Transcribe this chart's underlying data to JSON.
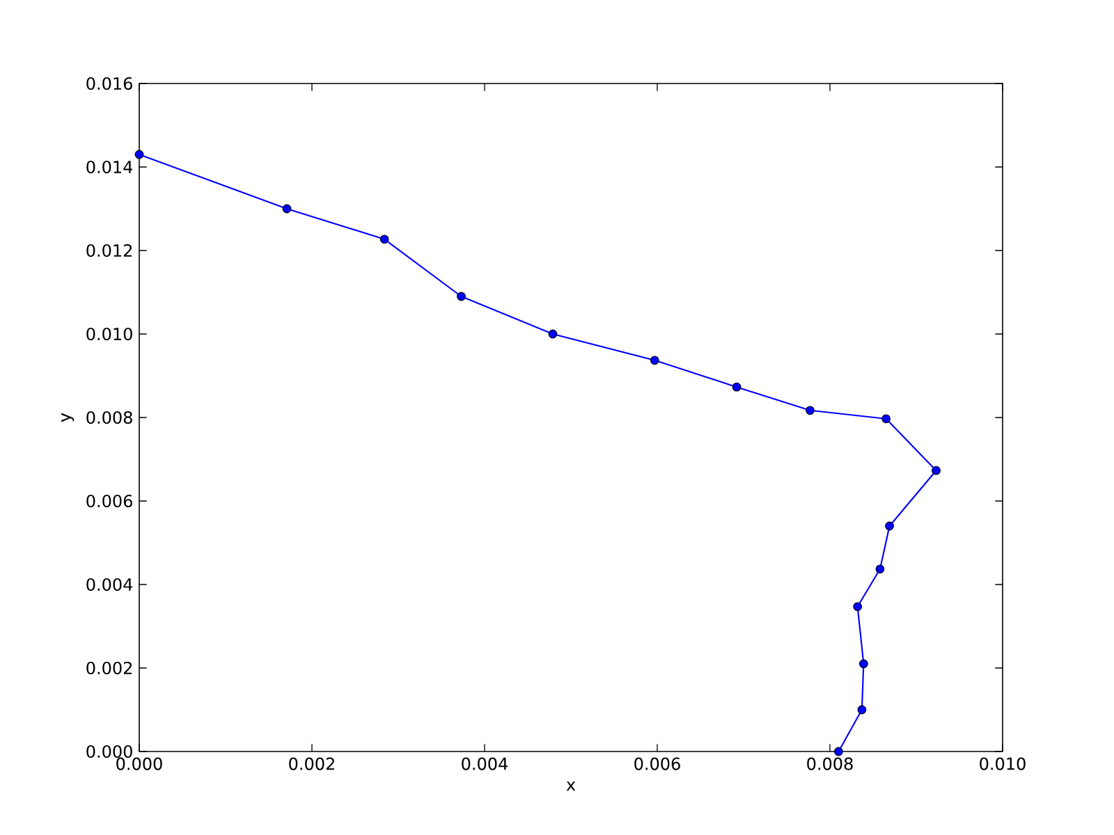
{
  "chart_data": {
    "type": "line",
    "xlabel": "x",
    "ylabel": "y",
    "color": "#0000ff",
    "marker": "circle",
    "line_style": "solid",
    "x": [
      0.0,
      0.00171,
      0.00284,
      0.00373,
      0.00479,
      0.00597,
      0.00692,
      0.00777,
      0.00865,
      0.00923,
      0.00869,
      0.00858,
      0.00832,
      0.00839,
      0.00837,
      0.0081
    ],
    "values": [
      0.0143,
      0.013,
      0.01227,
      0.0109,
      0.01,
      0.00937,
      0.00873,
      0.00817,
      0.00797,
      0.00673,
      0.0054,
      0.00437,
      0.00347,
      0.0021,
      0.001,
      0.0
    ],
    "xlim": [
      0,
      0.01
    ],
    "ylim": [
      0,
      0.016
    ],
    "xticks": [
      {
        "value": 0,
        "label": "0.000"
      },
      {
        "value": 0.002,
        "label": "0.002"
      },
      {
        "value": 0.004,
        "label": "0.004"
      },
      {
        "value": 0.006,
        "label": "0.006"
      },
      {
        "value": 0.008,
        "label": "0.008"
      },
      {
        "value": 0.01,
        "label": "0.010"
      }
    ],
    "yticks": [
      {
        "value": 0,
        "label": "0.000"
      },
      {
        "value": 0.002,
        "label": "0.002"
      },
      {
        "value": 0.004,
        "label": "0.004"
      },
      {
        "value": 0.006,
        "label": "0.006"
      },
      {
        "value": 0.008,
        "label": "0.008"
      },
      {
        "value": 0.01,
        "label": "0.010"
      },
      {
        "value": 0.012,
        "label": "0.012"
      },
      {
        "value": 0.014,
        "label": "0.014"
      },
      {
        "value": 0.016,
        "label": "0.016"
      }
    ]
  }
}
